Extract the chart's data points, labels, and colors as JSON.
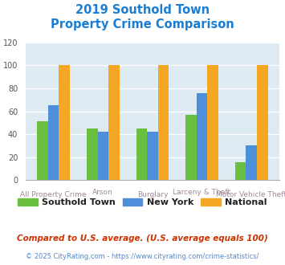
{
  "title_line1": "2019 Southold Town",
  "title_line2": "Property Crime Comparison",
  "title_color": "#1a7fd4",
  "categories": [
    "All Property Crime",
    "Arson",
    "Burglary",
    "Larceny & Theft",
    "Motor Vehicle Theft"
  ],
  "southold": [
    51,
    45,
    45,
    57,
    16
  ],
  "newyork": [
    65,
    42,
    42,
    76,
    30
  ],
  "national": [
    100,
    100,
    100,
    100,
    100
  ],
  "colors": {
    "southold": "#6abf40",
    "newyork": "#4d8fdb",
    "national": "#f5a623"
  },
  "ylim": [
    0,
    120
  ],
  "yticks": [
    0,
    20,
    40,
    60,
    80,
    100,
    120
  ],
  "bar_width": 0.22,
  "plot_bg": "#ddeaf2",
  "legend_labels": [
    "Southold Town",
    "New York",
    "National"
  ],
  "xtick_color": "#a08898",
  "footnote1": "Compared to U.S. average. (U.S. average equals 100)",
  "footnote2": "© 2025 CityRating.com - https://www.cityrating.com/crime-statistics/",
  "footnote1_color": "#cc3300",
  "footnote2_color": "#5588cc"
}
